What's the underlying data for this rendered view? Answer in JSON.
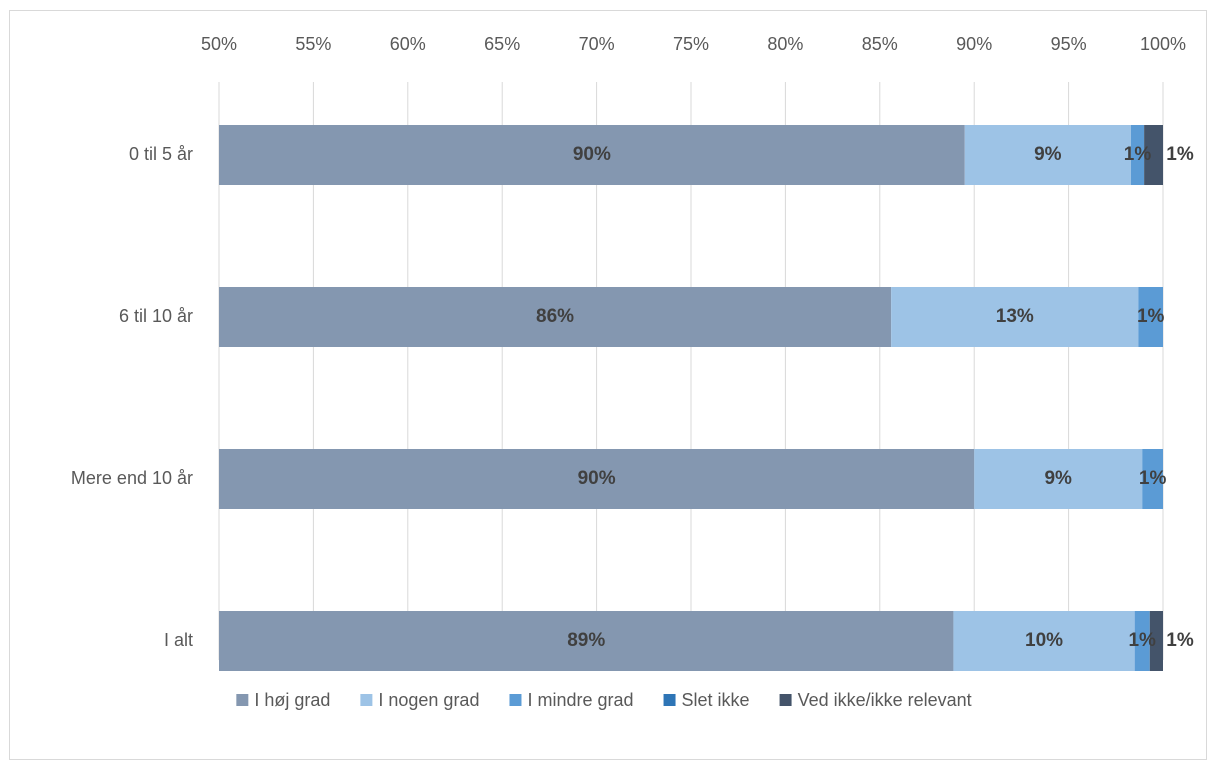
{
  "chart_data": {
    "type": "stacked-barh",
    "categories": [
      "0 til 5 år",
      "6 til 10 år",
      "Mere end 10 år",
      "I alt"
    ],
    "series": [
      {
        "name": "I høj grad",
        "color": "#8497b0",
        "values": [
          89.5,
          85.6,
          90.0,
          88.9
        ],
        "value_labels": [
          "90%",
          "86%",
          "90%",
          "89%"
        ]
      },
      {
        "name": "I nogen grad",
        "color": "#9dc3e6",
        "values": [
          8.8,
          13.1,
          8.9,
          9.6
        ],
        "value_labels": [
          "9%",
          "13%",
          "9%",
          "10%"
        ]
      },
      {
        "name": "I mindre grad",
        "color": "#5b9bd5",
        "values": [
          0.7,
          1.3,
          1.1,
          0.8
        ],
        "value_labels": [
          "1%",
          "1%",
          "1%",
          "1%"
        ]
      },
      {
        "name": "Slet ikke",
        "color": "#2e75b6",
        "values": [
          null,
          null,
          null,
          null
        ],
        "value_labels": [
          null,
          null,
          null,
          null
        ]
      },
      {
        "name": "Ved ikke/ikke relevant",
        "color": "#44546a",
        "values": [
          1.0,
          null,
          null,
          0.7
        ],
        "value_labels": [
          "1%",
          null,
          null,
          "1%"
        ]
      }
    ],
    "xlim": [
      50,
      100
    ],
    "xticks": [
      {
        "value": 50,
        "label": "50%"
      },
      {
        "value": 55,
        "label": "55%"
      },
      {
        "value": 60,
        "label": "60%"
      },
      {
        "value": 65,
        "label": "65%"
      },
      {
        "value": 70,
        "label": "70%"
      },
      {
        "value": 75,
        "label": "75%"
      },
      {
        "value": 80,
        "label": "80%"
      },
      {
        "value": 85,
        "label": "85%"
      },
      {
        "value": 90,
        "label": "90%"
      },
      {
        "value": 95,
        "label": "95%"
      },
      {
        "value": 100,
        "label": "100%"
      }
    ],
    "grid": true,
    "legend": "bottom"
  }
}
